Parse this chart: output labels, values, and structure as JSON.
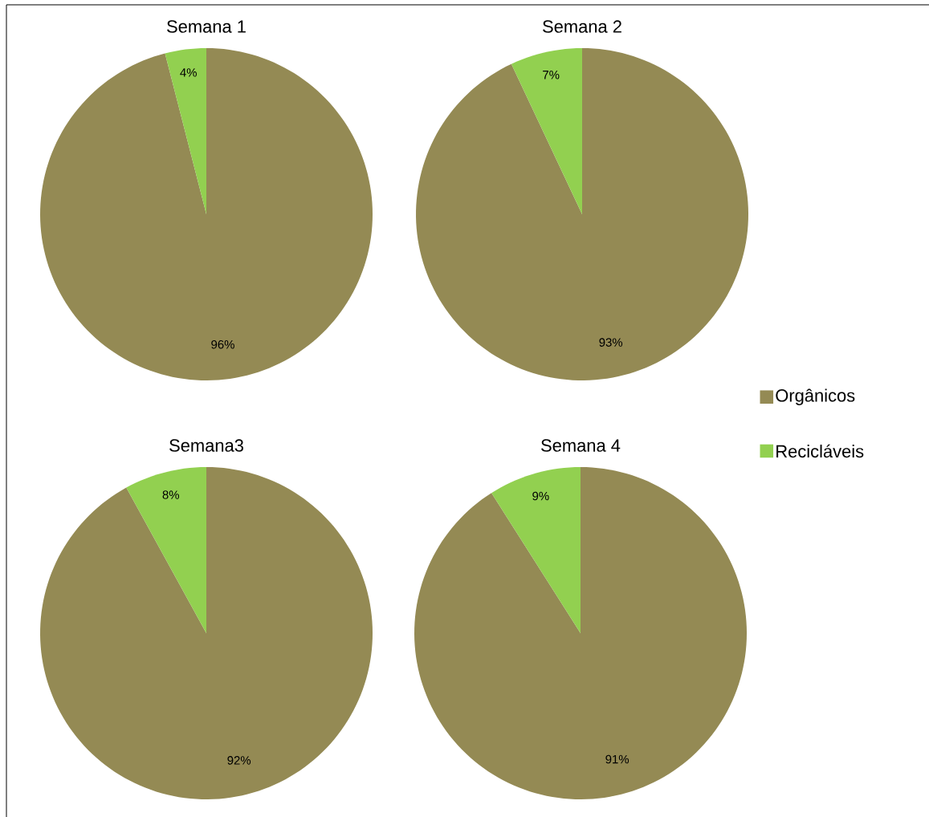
{
  "chart_data": [
    {
      "type": "pie",
      "title": "Semana 1",
      "categories": [
        null,
        null
      ],
      "values": [
        96,
        4
      ],
      "colors": [
        "#948a54",
        "#92d050"
      ],
      "value_labels": [
        "96%",
        "4%"
      ]
    },
    {
      "type": "pie",
      "title": "Semana 2",
      "categories": [
        "Orgânicos",
        "Recicláveis"
      ],
      "values": [
        93,
        7
      ],
      "colors": [
        "#948a54",
        "#92d050"
      ],
      "value_labels": [
        "93%",
        "7%"
      ],
      "legend": "right"
    },
    {
      "type": "pie",
      "title": "Semana3",
      "categories": [
        null,
        null
      ],
      "values": [
        92,
        8
      ],
      "colors": [
        "#948a54",
        "#92d050"
      ],
      "value_labels": [
        "92%",
        "8%"
      ]
    },
    {
      "type": "pie",
      "title": "Semana 4",
      "categories": [
        null,
        null
      ],
      "values": [
        91,
        9
      ],
      "colors": [
        "#948a54",
        "#92d050"
      ],
      "value_labels": [
        "91%",
        "9%"
      ]
    }
  ]
}
